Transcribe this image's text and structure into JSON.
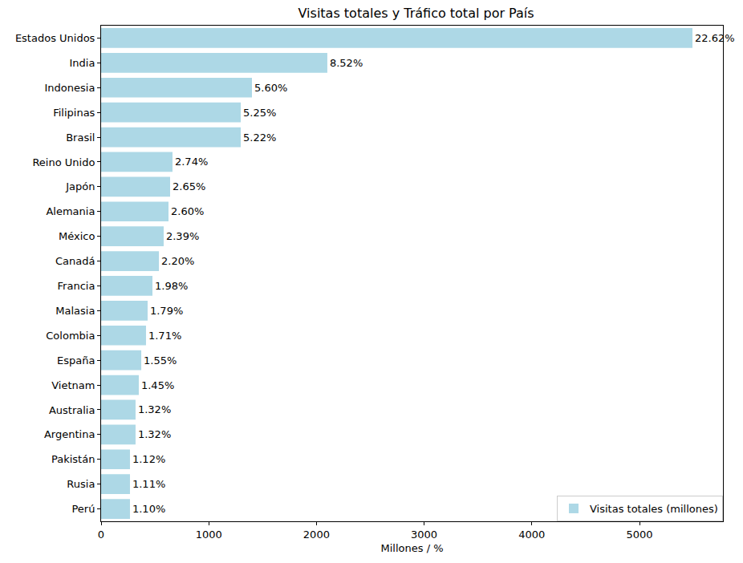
{
  "chart_data": {
    "type": "bar",
    "orientation": "horizontal",
    "title": "Visitas totales y Tráfico total por País",
    "x_label": "Millones / %",
    "categories": [
      "Estados Unidos",
      "India",
      "Indonesia",
      "Filipinas",
      "Brasil",
      "Reino Unido",
      "Japón",
      "Alemania",
      "México",
      "Canadá",
      "Francia",
      "Malasia",
      "Colombia",
      "España",
      "Vietnam",
      "Australia",
      "Argentina",
      "Pakistán",
      "Rusia",
      "Perú"
    ],
    "series": [
      {
        "name": "Visitas totales (millones)",
        "color": "#add8e6",
        "values": [
          5492,
          2101,
          1401,
          1297,
          1297,
          663,
          641,
          626,
          581,
          537,
          477,
          432,
          417,
          373,
          350,
          320,
          320,
          268,
          268,
          268
        ],
        "share_labels": [
          "22.62%",
          "8.52%",
          "5.60%",
          "5.25%",
          "5.22%",
          "2.74%",
          "2.65%",
          "2.60%",
          "2.39%",
          "2.20%",
          "1.98%",
          "1.79%",
          "1.71%",
          "1.55%",
          "1.45%",
          "1.32%",
          "1.32%",
          "1.12%",
          "1.11%",
          "1.10%"
        ]
      }
    ],
    "xlim": [
      0,
      5775
    ],
    "xticks": [
      0,
      1000,
      2000,
      3000,
      4000,
      5000
    ],
    "grid": false,
    "legend": "lower right"
  }
}
